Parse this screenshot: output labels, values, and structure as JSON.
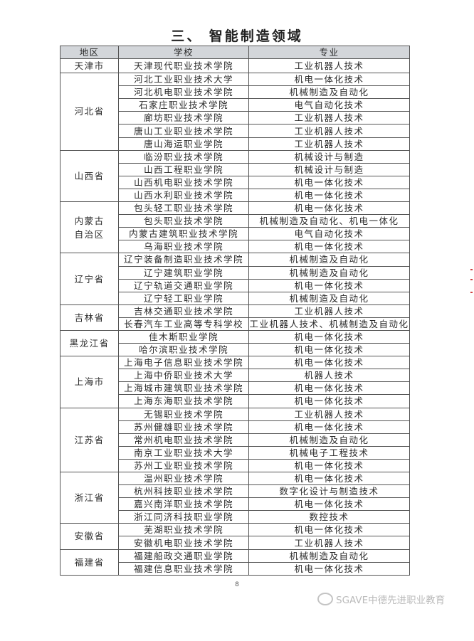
{
  "title": "三、 智能制造领域",
  "headers": [
    "地区",
    "学校",
    "专业"
  ],
  "regions": [
    {
      "name": "天津市",
      "rows": [
        [
          "天津现代职业技术学院",
          "工业机器人技术"
        ]
      ]
    },
    {
      "name": "河北省",
      "rows": [
        [
          "河北工业职业技术大学",
          "机电一体化技术"
        ],
        [
          "河北机电职业技术学院",
          "机械制造及自动化"
        ],
        [
          "石家庄职业技术学院",
          "电气自动化技术"
        ],
        [
          "廊坊职业技术学院",
          "工业机器人技术"
        ],
        [
          "唐山工业职业技术学院",
          "工业机器人技术"
        ],
        [
          "唐山海运职业学院",
          "工业机器人技术"
        ]
      ]
    },
    {
      "name": "山西省",
      "rows": [
        [
          "临汾职业技术学院",
          "机械设计与制造"
        ],
        [
          "山西工程职业学院",
          "机械设计与制造"
        ],
        [
          "山西机电职业技术学院",
          "机电一体化技术"
        ],
        [
          "山西水利职业技术学院",
          "机电一体化技术"
        ]
      ]
    },
    {
      "name": "内蒙古\n自治区",
      "rows": [
        [
          "包头轻工职业技术学院",
          "机电一体化技术"
        ],
        [
          "包头职业技术学院",
          "机械制造及自动化、机电一体化"
        ],
        [
          "内蒙古建筑职业技术学院",
          "电气自动化技术"
        ],
        [
          "乌海职业技术学院",
          "机电一体化技术"
        ]
      ]
    },
    {
      "name": "辽宁省",
      "rows": [
        [
          "辽宁装备制造职业技术学院",
          "机械制造及自动化"
        ],
        [
          "辽宁建筑职业学院",
          "机械制造及自动化"
        ],
        [
          "辽宁轨道交通职业学院",
          "机电一体化技术"
        ],
        [
          "辽宁轻工职业学院",
          "机械制造及自动化"
        ]
      ]
    },
    {
      "name": "吉林省",
      "rows": [
        [
          "吉林交通职业技术学院",
          "工业机器人技术"
        ],
        [
          "长春汽车工业高等专科学校",
          "工业机器人技术、机械制造及自动化"
        ]
      ]
    },
    {
      "name": "黑龙江省",
      "rows": [
        [
          "佳木斯职业学院",
          "机电一体化技术"
        ],
        [
          "哈尔滨职业技术学院",
          "机电一体化技术"
        ]
      ]
    },
    {
      "name": "上海市",
      "rows": [
        [
          "上海电子信息职业技术学院",
          "机电一体化技术"
        ],
        [
          "上海中侨职业技术大学",
          "机器人技术"
        ],
        [
          "上海城市建筑职业技术学院",
          "机电一体化技术"
        ],
        [
          "上海东海职业技术学院",
          "机电一体化技术"
        ]
      ]
    },
    {
      "name": "江苏省",
      "rows": [
        [
          "无锡职业技术学院",
          "工业机器人技术"
        ],
        [
          "苏州健雄职业技术学院",
          "机电一体化技术"
        ],
        [
          "常州机电职业技术学院",
          "机械制造及自动化"
        ],
        [
          "南京工业职业技术大学",
          "机械电子工程技术"
        ],
        [
          "苏州工业职业技术学院",
          "机电一体化技术"
        ]
      ]
    },
    {
      "name": "浙江省",
      "rows": [
        [
          "温州职业技术学院",
          "机电一体化技术"
        ],
        [
          "杭州科技职业技术学院",
          "数字化设计与制造技术"
        ],
        [
          "嘉兴南洋职业技术学院",
          "机电一体化技术"
        ],
        [
          "浙江同济科技职业学院",
          "数控技术"
        ]
      ]
    },
    {
      "name": "安徽省",
      "rows": [
        [
          "芜湖职业技术学院",
          "机电一体化技术"
        ],
        [
          "安徽机电职业技术学院",
          "工业机器人技术"
        ]
      ]
    },
    {
      "name": "福建省",
      "rows": [
        [
          "福建船政交通职业学院",
          "机械制造及自动化"
        ],
        [
          "福建信息职业技术学院",
          "机电一体化技术"
        ]
      ]
    }
  ],
  "page_number": "8",
  "watermark": "SGAVE中德先进职业教育",
  "colors": {
    "header_bg": "#d3d6da",
    "border": "#555555"
  }
}
